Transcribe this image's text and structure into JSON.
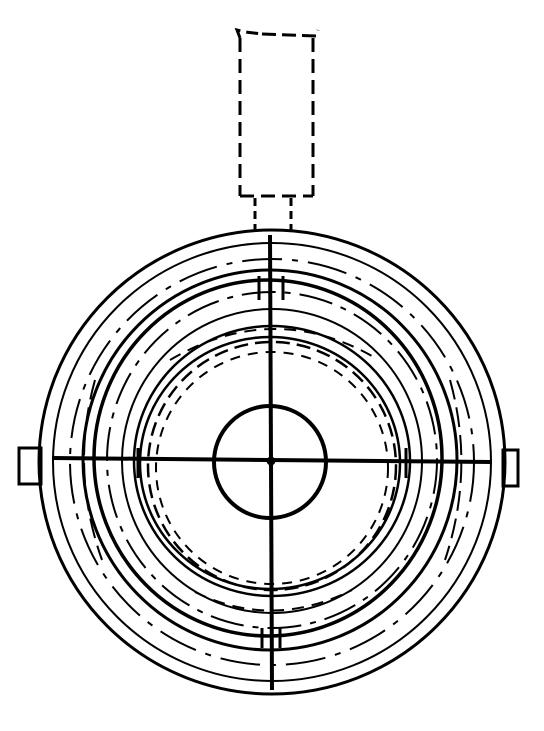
{
  "figure": {
    "background_color": "#ffffff",
    "ink_color": "#000000",
    "parts": {
      "upper_housing": {
        "line_style": "dashed"
      },
      "neck": {
        "line_style": "dashed"
      },
      "outer_rings": {
        "line_style": "solid"
      },
      "inner_rings": {
        "line_style": "solid"
      },
      "hidden_rings": {
        "line_style": "dashed"
      },
      "hub": {
        "line_style": "solid"
      },
      "centerlines": {
        "count": 2
      },
      "side_lugs": {
        "count": 2
      }
    }
  }
}
